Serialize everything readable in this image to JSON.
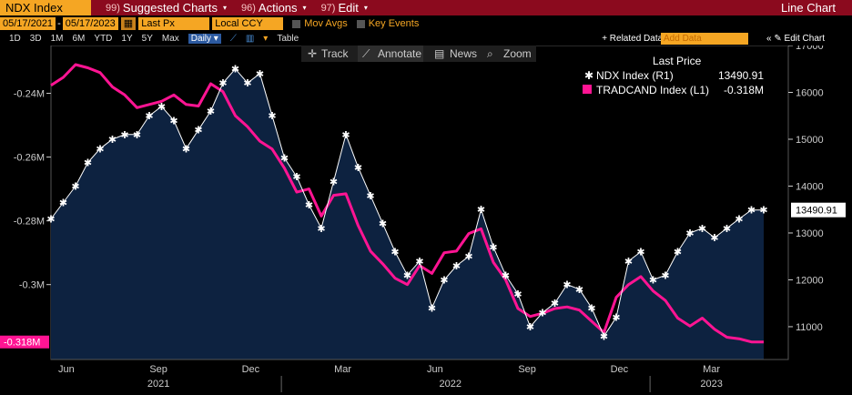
{
  "toolbar": {
    "security": "NDX Index",
    "suggested_num": "99)",
    "suggested_label": "Suggested Charts",
    "actions_num": "96)",
    "actions_label": "Actions",
    "edit_num": "97)",
    "edit_label": "Edit",
    "chart_type": "Line Chart"
  },
  "settings": {
    "start_date": "05/17/2021",
    "end_date": "05/17/2023",
    "price_field": "Last Px",
    "currency": "Local CCY",
    "mov_avgs": "Mov Avgs",
    "key_events": "Key Events"
  },
  "periods": [
    "1D",
    "3D",
    "1M",
    "6M",
    "YTD",
    "1Y",
    "5Y",
    "Max"
  ],
  "frequency": "Daily",
  "table_label": "Table",
  "related_data": "+ Related Data",
  "add_data_placeholder": "Add Data",
  "edit_chart": "Edit Chart",
  "chart_tools": {
    "track": "Track",
    "annotate": "Annotate",
    "news": "News",
    "zoom": "Zoom"
  },
  "colors": {
    "ndx": "#ffffff",
    "tradcand": "#ff1493",
    "area": "#0d2240",
    "bar": "#8b0a1e",
    "accent": "#f5a623"
  },
  "chart_data": {
    "type": "line",
    "legend": {
      "header": "Last Price",
      "entries": [
        {
          "name": "NDX Index  (R1)",
          "value": "13490.91"
        },
        {
          "name": "TRADCAND Index  (L1)",
          "value": "-0.318M"
        }
      ]
    },
    "left_axis": {
      "ticks": [
        "-0.24M",
        "-0.26M",
        "-0.28M",
        "-0.3M"
      ],
      "tick_values": [
        -0.24,
        -0.26,
        -0.28,
        -0.3
      ],
      "range": [
        -0.3235,
        -0.225
      ],
      "current_label": "-0.318M"
    },
    "right_axis": {
      "ticks": [
        "17000",
        "16000",
        "15000",
        "14000",
        "13000",
        "12000",
        "11000"
      ],
      "tick_values": [
        17000,
        16000,
        15000,
        14000,
        13000,
        12000,
        11000
      ],
      "range": [
        10300,
        17000
      ],
      "current_label": "13490.91"
    },
    "x_axis": {
      "months": [
        "Jun",
        "Sep",
        "Dec",
        "Mar",
        "Jun",
        "Sep",
        "Dec",
        "Mar"
      ],
      "month_positions": [
        0.5,
        3.5,
        6.5,
        9.5,
        12.5,
        15.5,
        18.5,
        21.5
      ],
      "years": [
        {
          "label": "2021",
          "at": 3.5
        },
        {
          "label": "2022",
          "at": 13.0
        },
        {
          "label": "2023",
          "at": 21.5
        }
      ],
      "separators": [
        7.5,
        19.5
      ],
      "range": [
        0,
        24
      ]
    },
    "series": [
      {
        "name": "NDX Index",
        "axis": "right",
        "x": [
          0,
          0.4,
          0.8,
          1.2,
          1.6,
          2.0,
          2.4,
          2.8,
          3.2,
          3.6,
          4.0,
          4.4,
          4.8,
          5.2,
          5.6,
          6.0,
          6.4,
          6.8,
          7.2,
          7.6,
          8.0,
          8.4,
          8.8,
          9.2,
          9.6,
          10.0,
          10.4,
          10.8,
          11.2,
          11.6,
          12.0,
          12.4,
          12.8,
          13.2,
          13.6,
          14.0,
          14.4,
          14.8,
          15.2,
          15.6,
          16.0,
          16.4,
          16.8,
          17.2,
          17.6,
          18.0,
          18.4,
          18.8,
          19.2,
          19.6,
          20.0,
          20.4,
          20.8,
          21.2,
          21.6,
          22.0,
          22.4,
          22.8,
          23.2
        ],
        "values": [
          13300,
          13650,
          14000,
          14500,
          14800,
          15000,
          15100,
          15100,
          15500,
          15700,
          15400,
          14800,
          15200,
          15600,
          16200,
          16500,
          16200,
          16400,
          15500,
          14600,
          14200,
          13600,
          13100,
          14100,
          15100,
          14400,
          13800,
          13200,
          12600,
          12100,
          12400,
          11400,
          12000,
          12300,
          12500,
          13500,
          12700,
          12100,
          11700,
          11000,
          11300,
          11500,
          11900,
          11800,
          11400,
          10800,
          11200,
          12400,
          12600,
          12000,
          12100,
          12600,
          13000,
          13100,
          12900,
          13100,
          13300,
          13490.91,
          13490.91
        ]
      },
      {
        "name": "TRADCAND Index",
        "axis": "left",
        "x": [
          0,
          0.4,
          0.8,
          1.2,
          1.6,
          2.0,
          2.4,
          2.8,
          3.2,
          3.6,
          4.0,
          4.4,
          4.8,
          5.2,
          5.6,
          6.0,
          6.4,
          6.8,
          7.2,
          7.6,
          8.0,
          8.4,
          8.8,
          9.2,
          9.6,
          10.0,
          10.4,
          10.8,
          11.2,
          11.6,
          12.0,
          12.4,
          12.8,
          13.2,
          13.6,
          14.0,
          14.4,
          14.8,
          15.2,
          15.6,
          16.0,
          16.4,
          16.8,
          17.2,
          17.6,
          18.0,
          18.4,
          18.8,
          19.2,
          19.6,
          20.0,
          20.4,
          20.8,
          21.2,
          21.6,
          22.0,
          22.4,
          22.8,
          23.2
        ],
        "values": [
          -0.2375,
          -0.235,
          -0.231,
          -0.232,
          -0.2335,
          -0.238,
          -0.2405,
          -0.2445,
          -0.2435,
          -0.2425,
          -0.2405,
          -0.2435,
          -0.244,
          -0.237,
          -0.2395,
          -0.247,
          -0.2505,
          -0.255,
          -0.2575,
          -0.2635,
          -0.271,
          -0.27,
          -0.2785,
          -0.272,
          -0.2715,
          -0.2815,
          -0.2895,
          -0.2935,
          -0.298,
          -0.3,
          -0.294,
          -0.2965,
          -0.29,
          -0.2895,
          -0.284,
          -0.2825,
          -0.293,
          -0.2985,
          -0.3075,
          -0.31,
          -0.309,
          -0.3075,
          -0.307,
          -0.308,
          -0.3115,
          -0.315,
          -0.304,
          -0.3,
          -0.2975,
          -0.302,
          -0.305,
          -0.3105,
          -0.313,
          -0.3105,
          -0.314,
          -0.3165,
          -0.317,
          -0.318,
          -0.318
        ]
      }
    ]
  }
}
